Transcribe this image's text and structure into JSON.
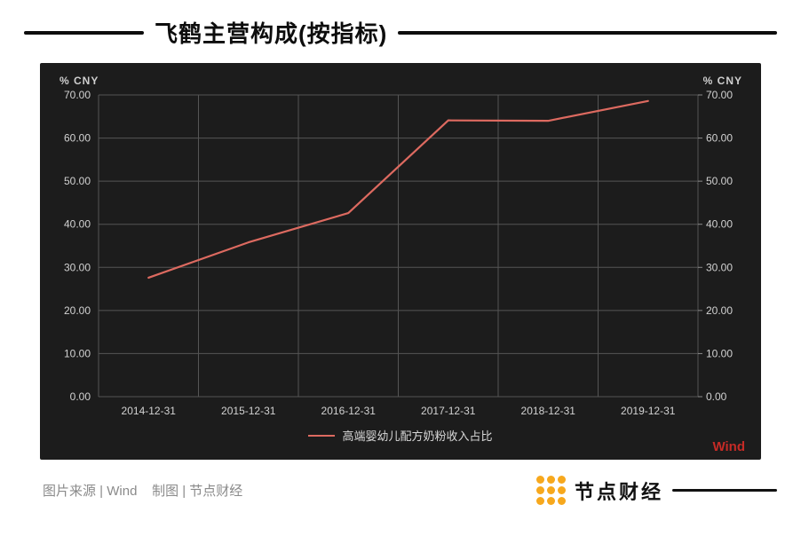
{
  "page": {
    "title": "飞鹤主营构成(按指标)"
  },
  "chart": {
    "left_axis_unit": "% CNY",
    "right_axis_unit": "% CNY",
    "watermark": "Wind",
    "line_color": "#dd6a60",
    "watermark_color": "#c52b26"
  },
  "chart_data": {
    "type": "line",
    "title": "飞鹤主营构成(按指标)",
    "categories": [
      "2014-12-31",
      "2015-12-31",
      "2016-12-31",
      "2017-12-31",
      "2018-12-31",
      "2019-12-31"
    ],
    "series": [
      {
        "name": "高端婴幼儿配方奶粉收入占比",
        "values": [
          27.6,
          35.8,
          42.6,
          64.1,
          64.0,
          68.6
        ]
      }
    ],
    "xlabel": "",
    "ylabel_left": "% CNY",
    "ylabel_right": "% CNY",
    "ylim": [
      0,
      70
    ],
    "yticks": [
      0,
      10,
      20,
      30,
      40,
      50,
      60,
      70
    ],
    "ytick_format": "2dp",
    "grid": true,
    "legend_position": "bottom"
  },
  "footer": {
    "source_text": "图片来源 | Wind    制图 | 节点财经",
    "brand": "节点财经",
    "brand_color": "#f7a81d"
  }
}
